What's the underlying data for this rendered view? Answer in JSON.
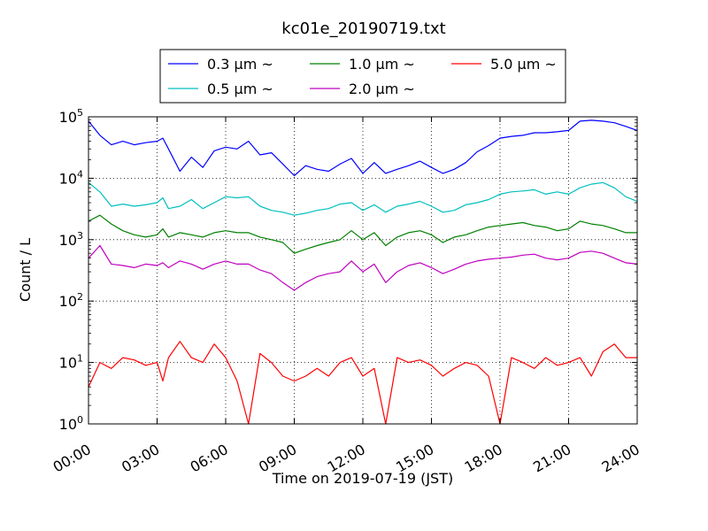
{
  "chart_data": {
    "type": "line",
    "title": "kc01e_20190719.txt",
    "xlabel": "Time on 2019-07-19 (JST)",
    "ylabel": "Count / L",
    "yscale": "log",
    "xlim": [
      0,
      24
    ],
    "ylim": [
      1,
      100000
    ],
    "grid": true,
    "legend_position": "top-center",
    "x_tick_labels": [
      "00:00",
      "03:00",
      "06:00",
      "09:00",
      "12:00",
      "15:00",
      "18:00",
      "21:00",
      "24:00"
    ],
    "y_tick_labels": [
      {
        "base": "10",
        "exp": "0"
      },
      {
        "base": "10",
        "exp": "1"
      },
      {
        "base": "10",
        "exp": "2"
      },
      {
        "base": "10",
        "exp": "3"
      },
      {
        "base": "10",
        "exp": "4"
      },
      {
        "base": "10",
        "exp": "5"
      }
    ],
    "series": [
      {
        "name": "0.3 μm ~",
        "color": "#0000ff",
        "x": [
          0,
          0.5,
          1,
          1.5,
          2,
          2.5,
          3,
          3.25,
          3.5,
          4,
          4.5,
          5,
          5.5,
          6,
          6.5,
          7,
          7.5,
          8,
          8.5,
          9,
          9.5,
          10,
          10.5,
          11,
          11.5,
          12,
          12.5,
          13,
          13.5,
          14,
          14.5,
          15,
          15.5,
          16,
          16.5,
          17,
          17.5,
          18,
          18.5,
          19,
          19.5,
          20,
          20.5,
          21,
          21.5,
          22,
          22.5,
          23,
          23.5,
          24
        ],
        "y": [
          85000,
          50000,
          35000,
          40000,
          35000,
          38000,
          40000,
          45000,
          30000,
          13000,
          22000,
          15000,
          28000,
          32000,
          30000,
          40000,
          24000,
          26000,
          17000,
          11000,
          16000,
          14000,
          13000,
          17000,
          21000,
          12000,
          18000,
          12000,
          14000,
          16000,
          19000,
          15000,
          12000,
          14000,
          18000,
          27000,
          34000,
          45000,
          48000,
          50000,
          55000,
          55000,
          57000,
          60000,
          85000,
          88000,
          85000,
          80000,
          70000,
          60000
        ]
      },
      {
        "name": "0.5 μm ~",
        "color": "#00bfbf",
        "x": [
          0,
          0.5,
          1,
          1.5,
          2,
          2.5,
          3,
          3.25,
          3.5,
          4,
          4.5,
          5,
          5.5,
          6,
          6.5,
          7,
          7.5,
          8,
          8.5,
          9,
          9.5,
          10,
          10.5,
          11,
          11.5,
          12,
          12.5,
          13,
          13.5,
          14,
          14.5,
          15,
          15.5,
          16,
          16.5,
          17,
          17.5,
          18,
          18.5,
          19,
          19.5,
          20,
          20.5,
          21,
          21.5,
          22,
          22.5,
          23,
          23.5,
          24
        ],
        "y": [
          8500,
          6000,
          3500,
          3800,
          3500,
          3700,
          4000,
          4800,
          3200,
          3500,
          4500,
          3200,
          4000,
          5000,
          4800,
          5000,
          3500,
          3000,
          2800,
          2500,
          2700,
          3000,
          3200,
          3800,
          4000,
          3000,
          3700,
          2800,
          3500,
          3800,
          4200,
          3500,
          2800,
          3000,
          3700,
          4000,
          4500,
          5500,
          6000,
          6200,
          6500,
          5500,
          6000,
          5500,
          7000,
          8000,
          8500,
          7000,
          5000,
          4200
        ]
      },
      {
        "name": "1.0 μm ~",
        "color": "#008000",
        "x": [
          0,
          0.5,
          1,
          1.5,
          2,
          2.5,
          3,
          3.25,
          3.5,
          4,
          4.5,
          5,
          5.5,
          6,
          6.5,
          7,
          7.5,
          8,
          8.5,
          9,
          9.5,
          10,
          10.5,
          11,
          11.5,
          12,
          12.5,
          13,
          13.5,
          14,
          14.5,
          15,
          15.5,
          16,
          16.5,
          17,
          17.5,
          18,
          18.5,
          19,
          19.5,
          20,
          20.5,
          21,
          21.5,
          22,
          22.5,
          23,
          23.5,
          24
        ],
        "y": [
          2000,
          2500,
          1800,
          1400,
          1200,
          1100,
          1200,
          1500,
          1100,
          1300,
          1200,
          1100,
          1300,
          1400,
          1300,
          1300,
          1100,
          1000,
          900,
          600,
          700,
          800,
          900,
          1000,
          1400,
          1000,
          1300,
          800,
          1100,
          1300,
          1400,
          1200,
          900,
          1100,
          1200,
          1400,
          1600,
          1700,
          1800,
          1900,
          1700,
          1600,
          1400,
          1500,
          2000,
          1800,
          1700,
          1500,
          1300,
          1300
        ]
      },
      {
        "name": "2.0 μm ~",
        "color": "#bf00bf",
        "x": [
          0,
          0.5,
          1,
          1.5,
          2,
          2.5,
          3,
          3.25,
          3.5,
          4,
          4.5,
          5,
          5.5,
          6,
          6.5,
          7,
          7.5,
          8,
          8.5,
          9,
          9.5,
          10,
          10.5,
          11,
          11.5,
          12,
          12.5,
          13,
          13.5,
          14,
          14.5,
          15,
          15.5,
          16,
          16.5,
          17,
          17.5,
          18,
          18.5,
          19,
          19.5,
          20,
          20.5,
          21,
          21.5,
          22,
          22.5,
          23,
          23.5,
          24
        ],
        "y": [
          500,
          800,
          400,
          380,
          350,
          400,
          380,
          420,
          350,
          450,
          400,
          330,
          400,
          450,
          400,
          400,
          320,
          280,
          200,
          150,
          200,
          250,
          280,
          300,
          450,
          300,
          400,
          200,
          300,
          380,
          420,
          350,
          280,
          330,
          400,
          450,
          480,
          500,
          520,
          560,
          580,
          500,
          470,
          500,
          620,
          650,
          600,
          500,
          420,
          400
        ]
      },
      {
        "name": "5.0 μm ~",
        "color": "#ff0000",
        "x": [
          0,
          0.5,
          1,
          1.5,
          2,
          2.5,
          3,
          3.25,
          3.5,
          4,
          4.5,
          5,
          5.5,
          6,
          6.5,
          7,
          7.5,
          8,
          8.5,
          9,
          9.5,
          10,
          10.5,
          11,
          11.5,
          12,
          12.5,
          13,
          13.5,
          14,
          14.5,
          15,
          15.5,
          16,
          16.5,
          17,
          17.5,
          18,
          18.5,
          19,
          19.5,
          20,
          20.5,
          21,
          21.5,
          22,
          22.5,
          23,
          23.5,
          24
        ],
        "y": [
          4,
          10,
          8,
          12,
          11,
          9,
          10,
          5,
          12,
          22,
          12,
          10,
          20,
          12,
          5,
          1,
          14,
          10,
          6,
          5,
          6,
          8,
          6,
          10,
          12,
          6,
          8,
          1,
          12,
          10,
          11,
          9,
          6,
          8,
          10,
          9,
          6,
          1,
          12,
          10,
          8,
          12,
          9,
          10,
          12,
          6,
          15,
          20,
          12,
          12
        ]
      }
    ]
  }
}
